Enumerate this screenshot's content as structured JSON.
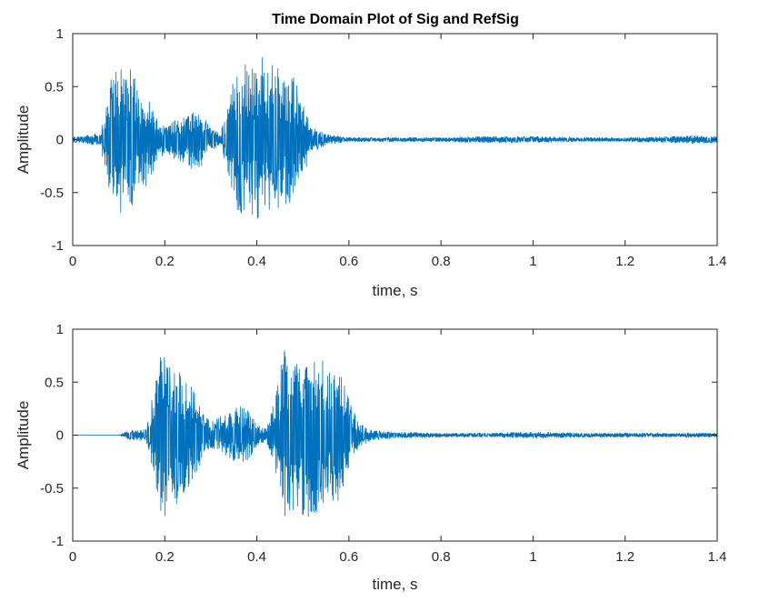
{
  "colors": {
    "signal": "#0072BD",
    "axes": "#262626",
    "background": "#ffffff"
  },
  "chart_data": [
    {
      "type": "line",
      "title": "Time Domain Plot of Sig and RefSig",
      "xlabel": "time, s",
      "ylabel": "Amplitude",
      "xlim": [
        0,
        1.4
      ],
      "ylim": [
        -1,
        1
      ],
      "xticks": [
        0,
        0.2,
        0.4,
        0.6,
        0.8,
        1,
        1.2,
        1.4
      ],
      "xtick_labels": [
        "0",
        "0.2",
        "0.4",
        "0.6",
        "0.8",
        "1",
        "1.2",
        "1.4"
      ],
      "yticks": [
        -1,
        -0.5,
        0,
        0.5,
        1
      ],
      "ytick_labels": [
        "-1",
        "-0.5",
        "0",
        "0.5",
        "1"
      ],
      "grid": false,
      "series": [
        {
          "x": [
            0,
            0.02,
            0.04,
            0.06,
            0.07,
            0.08,
            0.09,
            0.1,
            0.11,
            0.12,
            0.13,
            0.14,
            0.16,
            0.18,
            0.2,
            0.22,
            0.24,
            0.26,
            0.28,
            0.3,
            0.32,
            0.34,
            0.35,
            0.36,
            0.37,
            0.38,
            0.4,
            0.42,
            0.44,
            0.46,
            0.48,
            0.5,
            0.52,
            0.55,
            0.58,
            0.6,
            0.7,
            0.8,
            0.9,
            1.0,
            1.1,
            1.2,
            1.3,
            1.35,
            1.4
          ],
          "envelope": [
            0.03,
            0.03,
            0.05,
            0.06,
            0.3,
            0.5,
            0.75,
            0.82,
            0.65,
            0.6,
            0.72,
            0.55,
            0.45,
            0.25,
            0.12,
            0.18,
            0.22,
            0.28,
            0.25,
            0.1,
            0.06,
            0.35,
            0.6,
            0.82,
            0.8,
            0.7,
            0.75,
            0.8,
            0.72,
            0.6,
            0.65,
            0.35,
            0.12,
            0.05,
            0.03,
            0.02,
            0.02,
            0.02,
            0.03,
            0.03,
            0.02,
            0.02,
            0.03,
            0.04,
            0.03
          ]
        }
      ]
    },
    {
      "type": "line",
      "title": "",
      "xlabel": "time, s",
      "ylabel": "Amplitude",
      "xlim": [
        0,
        1.4
      ],
      "ylim": [
        -1,
        1
      ],
      "xticks": [
        0,
        0.2,
        0.4,
        0.6,
        0.8,
        1,
        1.2,
        1.4
      ],
      "xtick_labels": [
        "0",
        "0.2",
        "0.4",
        "0.6",
        "0.8",
        "1",
        "1.2",
        "1.4"
      ],
      "yticks": [
        -1,
        -0.5,
        0,
        0.5,
        1
      ],
      "ytick_labels": [
        "-1",
        "-0.5",
        "0",
        "0.5",
        "1"
      ],
      "grid": false,
      "series": [
        {
          "x": [
            0,
            0.05,
            0.1,
            0.12,
            0.14,
            0.16,
            0.17,
            0.18,
            0.19,
            0.2,
            0.21,
            0.22,
            0.23,
            0.24,
            0.26,
            0.28,
            0.3,
            0.32,
            0.34,
            0.36,
            0.38,
            0.4,
            0.42,
            0.44,
            0.45,
            0.46,
            0.47,
            0.48,
            0.5,
            0.52,
            0.54,
            0.56,
            0.58,
            0.6,
            0.62,
            0.65,
            0.7,
            0.8,
            0.9,
            1.0,
            1.1,
            1.2,
            1.3,
            1.4
          ],
          "envelope": [
            0,
            0,
            0,
            0.04,
            0.05,
            0.06,
            0.3,
            0.5,
            0.75,
            0.82,
            0.65,
            0.6,
            0.72,
            0.55,
            0.45,
            0.25,
            0.12,
            0.18,
            0.22,
            0.28,
            0.25,
            0.1,
            0.06,
            0.35,
            0.6,
            0.82,
            0.8,
            0.7,
            0.75,
            0.8,
            0.72,
            0.6,
            0.65,
            0.35,
            0.12,
            0.05,
            0.03,
            0.02,
            0.02,
            0.03,
            0.02,
            0.02,
            0.02,
            0.02
          ]
        }
      ]
    }
  ]
}
